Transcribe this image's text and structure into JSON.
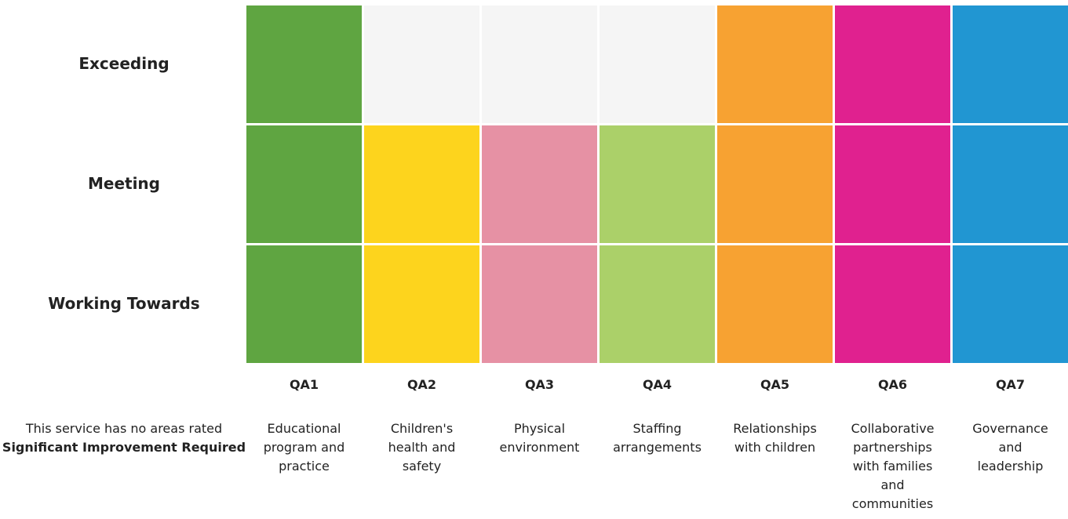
{
  "chart_data": {
    "type": "heatmap",
    "rows": [
      "Exceeding",
      "Meeting",
      "Working Towards"
    ],
    "columns": [
      {
        "code": "QA1",
        "name": "Educational\nprogram and\npractice",
        "color": "#5fa541",
        "rating": "Exceeding"
      },
      {
        "code": "QA2",
        "name": "Children's\nhealth and\nsafety",
        "color": "#fdd41d",
        "rating": "Meeting"
      },
      {
        "code": "QA3",
        "name": "Physical\nenvironment",
        "color": "#e691a4",
        "rating": "Meeting"
      },
      {
        "code": "QA4",
        "name": "Staffing\narrangements",
        "color": "#abd069",
        "rating": "Meeting"
      },
      {
        "code": "QA5",
        "name": "Relationships\nwith children",
        "color": "#f7a232",
        "rating": "Exceeding"
      },
      {
        "code": "QA6",
        "name": "Collaborative\npartnerships\nwith families\nand\ncommunities",
        "color": "#e0218f",
        "rating": "Exceeding"
      },
      {
        "code": "QA7",
        "name": "Governance\nand\nleadership",
        "color": "#2196d2",
        "rating": "Exceeding"
      }
    ],
    "empty_color": "#f5f5f5"
  },
  "footnote": {
    "text": "This service has no areas rated",
    "bold": "Significant Improvement Required"
  }
}
